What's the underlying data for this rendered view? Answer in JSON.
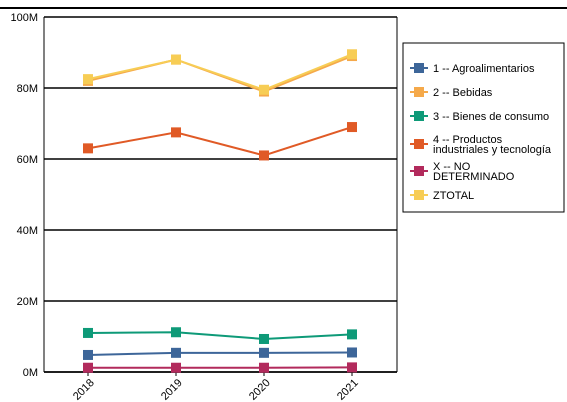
{
  "chart_data": {
    "type": "line",
    "title": "",
    "xlabel": "",
    "ylabel": "",
    "categories": [
      "2018",
      "2019",
      "2020",
      "2021"
    ],
    "ylim": [
      0,
      100000000
    ],
    "yticks": [
      0,
      20000000,
      40000000,
      60000000,
      80000000,
      100000000
    ],
    "ytick_labels": [
      "0M",
      "20M",
      "40M",
      "60M",
      "80M",
      "100M"
    ],
    "grid": "horizontal",
    "legend_position": "right",
    "series": [
      {
        "name": "1 -- Agroalimentarios",
        "color": "#3d6699",
        "values": [
          4800000,
          5400000,
          5400000,
          5500000
        ]
      },
      {
        "name": "2 -- Bebidas",
        "color": "#f5a94a",
        "values": [
          82000000,
          88000000,
          79000000,
          89000000
        ]
      },
      {
        "name": "3 -- Bienes de consumo",
        "color": "#0e9a78",
        "values": [
          11000000,
          11200000,
          9300000,
          10600000
        ]
      },
      {
        "name": "4 -- Productos industriales y tecnología",
        "color": "#e05a26",
        "values": [
          63000000,
          67500000,
          61000000,
          69000000
        ]
      },
      {
        "name": "X -- NO DETERMINADO",
        "color": "#b22a5c",
        "values": [
          1200000,
          1200000,
          1200000,
          1300000
        ]
      },
      {
        "name": "ZTOTAL",
        "color": "#f7cd55",
        "values": [
          82500000,
          88000000,
          79500000,
          89500000
        ]
      }
    ]
  }
}
